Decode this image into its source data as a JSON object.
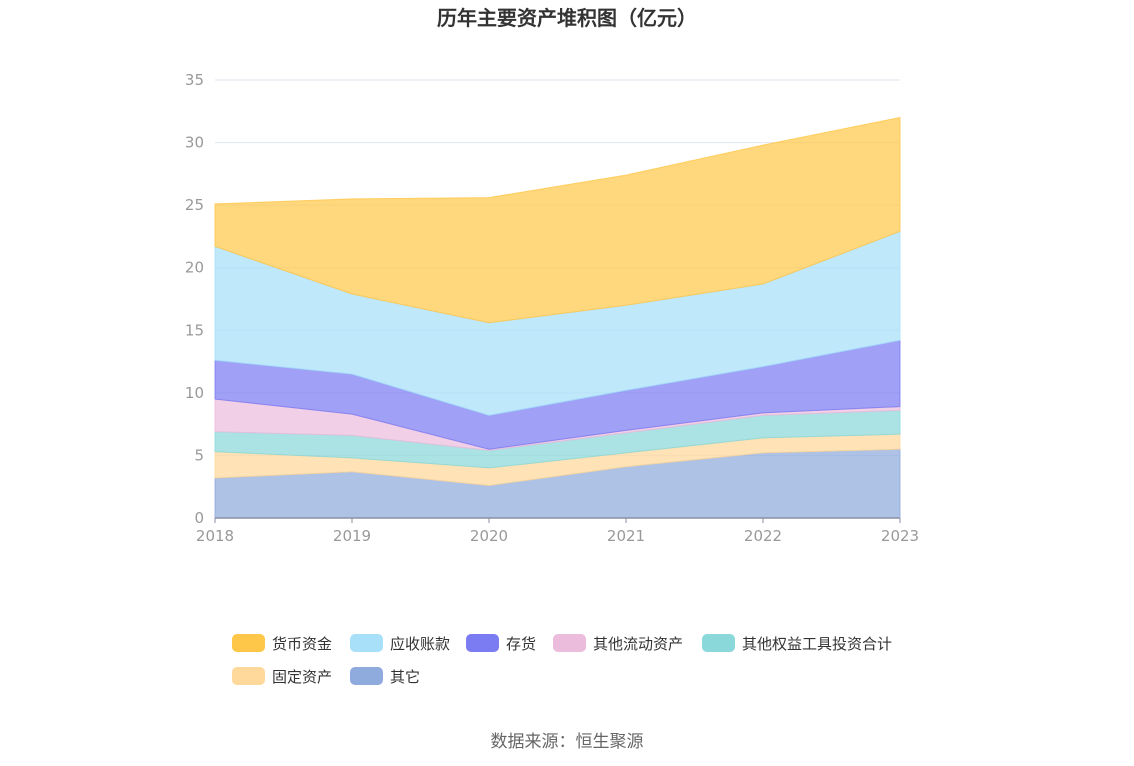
{
  "chart_data": {
    "type": "area",
    "stacked": true,
    "title": "历年主要资产堆积图（亿元）",
    "categories": [
      "2018",
      "2019",
      "2020",
      "2021",
      "2022",
      "2023"
    ],
    "ylim": [
      0,
      35
    ],
    "yticks": [
      0,
      5,
      10,
      15,
      20,
      25,
      30,
      35
    ],
    "grid": true,
    "legend_position": "bottom",
    "series": [
      {
        "name": "其它",
        "color": "#8FAADC",
        "values": [
          3.2,
          3.7,
          2.6,
          4.1,
          5.2,
          5.5
        ]
      },
      {
        "name": "固定资产",
        "color": "#FFD89B",
        "values": [
          2.1,
          1.1,
          1.4,
          1.1,
          1.2,
          1.2
        ]
      },
      {
        "name": "其他权益工具投资合计",
        "color": "#8BD8DA",
        "values": [
          1.6,
          1.8,
          1.4,
          1.6,
          1.8,
          1.9
        ]
      },
      {
        "name": "其他流动资产",
        "color": "#EBBCDC",
        "values": [
          2.6,
          1.7,
          0.1,
          0.2,
          0.2,
          0.3
        ]
      },
      {
        "name": "存货",
        "color": "#7B7CF2",
        "values": [
          3.1,
          3.2,
          2.7,
          3.2,
          3.7,
          5.3
        ]
      },
      {
        "name": "应收账款",
        "color": "#A8DFF9",
        "values": [
          9.1,
          6.4,
          7.4,
          6.8,
          6.6,
          8.7
        ]
      },
      {
        "name": "货币资金",
        "color": "#FFC74A",
        "values": [
          3.4,
          7.6,
          10.0,
          10.4,
          11.1,
          9.1
        ]
      }
    ],
    "legend_order": [
      "货币资金",
      "应收账款",
      "存货",
      "其他流动资产",
      "其他权益工具投资合计",
      "固定资产",
      "其它"
    ]
  },
  "source": "数据来源：恒生聚源"
}
